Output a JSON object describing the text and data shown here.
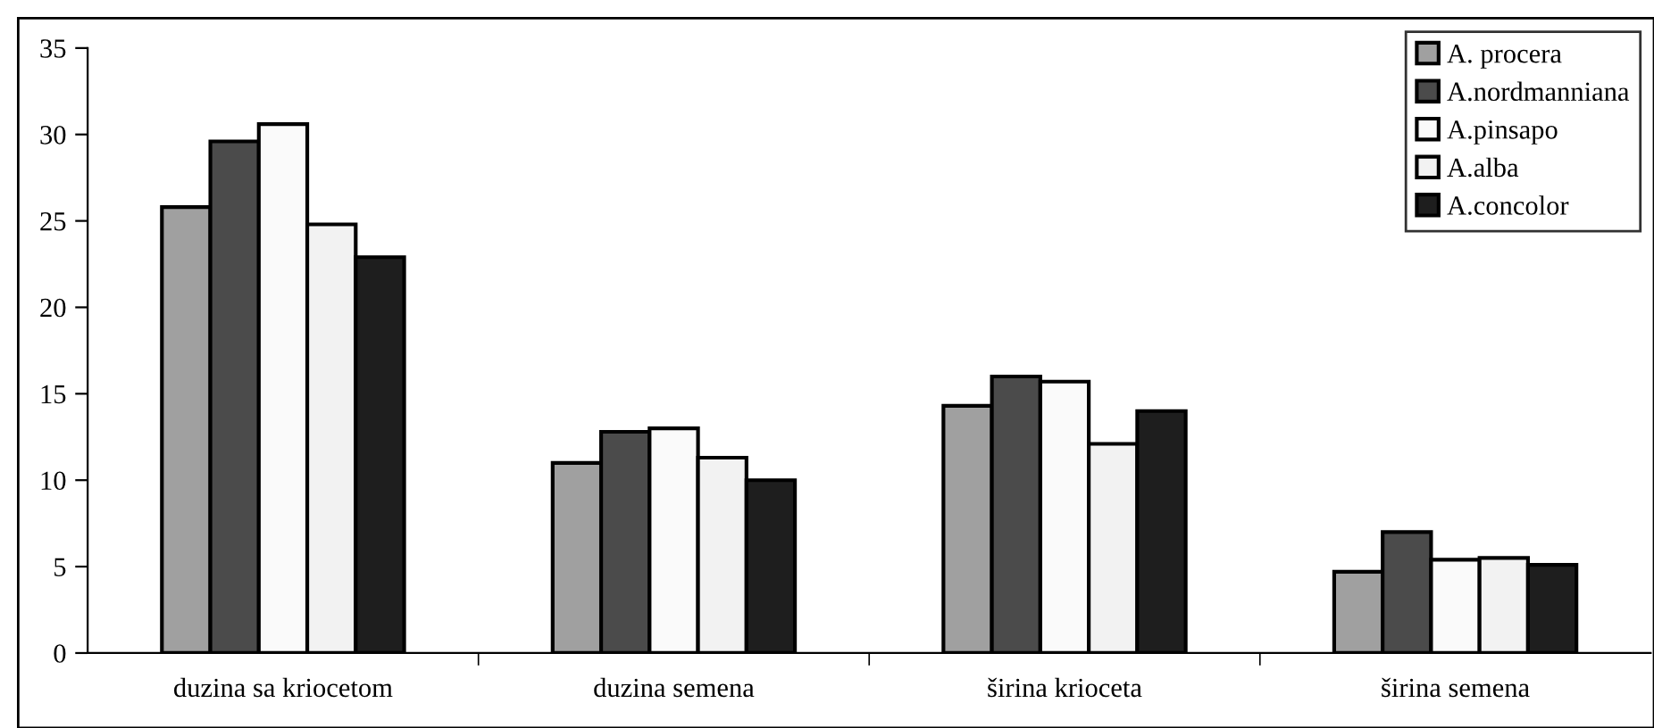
{
  "chart_data": {
    "type": "bar",
    "categories": [
      "duzina sa kriocetom",
      "duzina semena",
      "širina krioceta",
      "širina semena"
    ],
    "series": [
      {
        "name": "A. procera",
        "color": "#a0a0a0",
        "values": [
          25.8,
          11.0,
          14.3,
          4.7
        ]
      },
      {
        "name": "A.nordmanniana",
        "color": "#4b4b4b",
        "values": [
          29.6,
          12.8,
          16.0,
          7.0
        ]
      },
      {
        "name": "A.pinsapo",
        "color": "#fafafa",
        "values": [
          30.6,
          13.0,
          15.7,
          5.4
        ]
      },
      {
        "name": "A.alba",
        "color": "#f2f2f2",
        "values": [
          24.8,
          11.3,
          12.1,
          5.5
        ]
      },
      {
        "name": "A.concolor",
        "color": "#1e1e1e",
        "values": [
          22.9,
          10.0,
          14.0,
          5.1
        ]
      }
    ],
    "ylim": [
      0,
      35
    ],
    "yticks": [
      0,
      5,
      10,
      15,
      20,
      25,
      30,
      35
    ],
    "grid": false,
    "legend": "top right"
  }
}
